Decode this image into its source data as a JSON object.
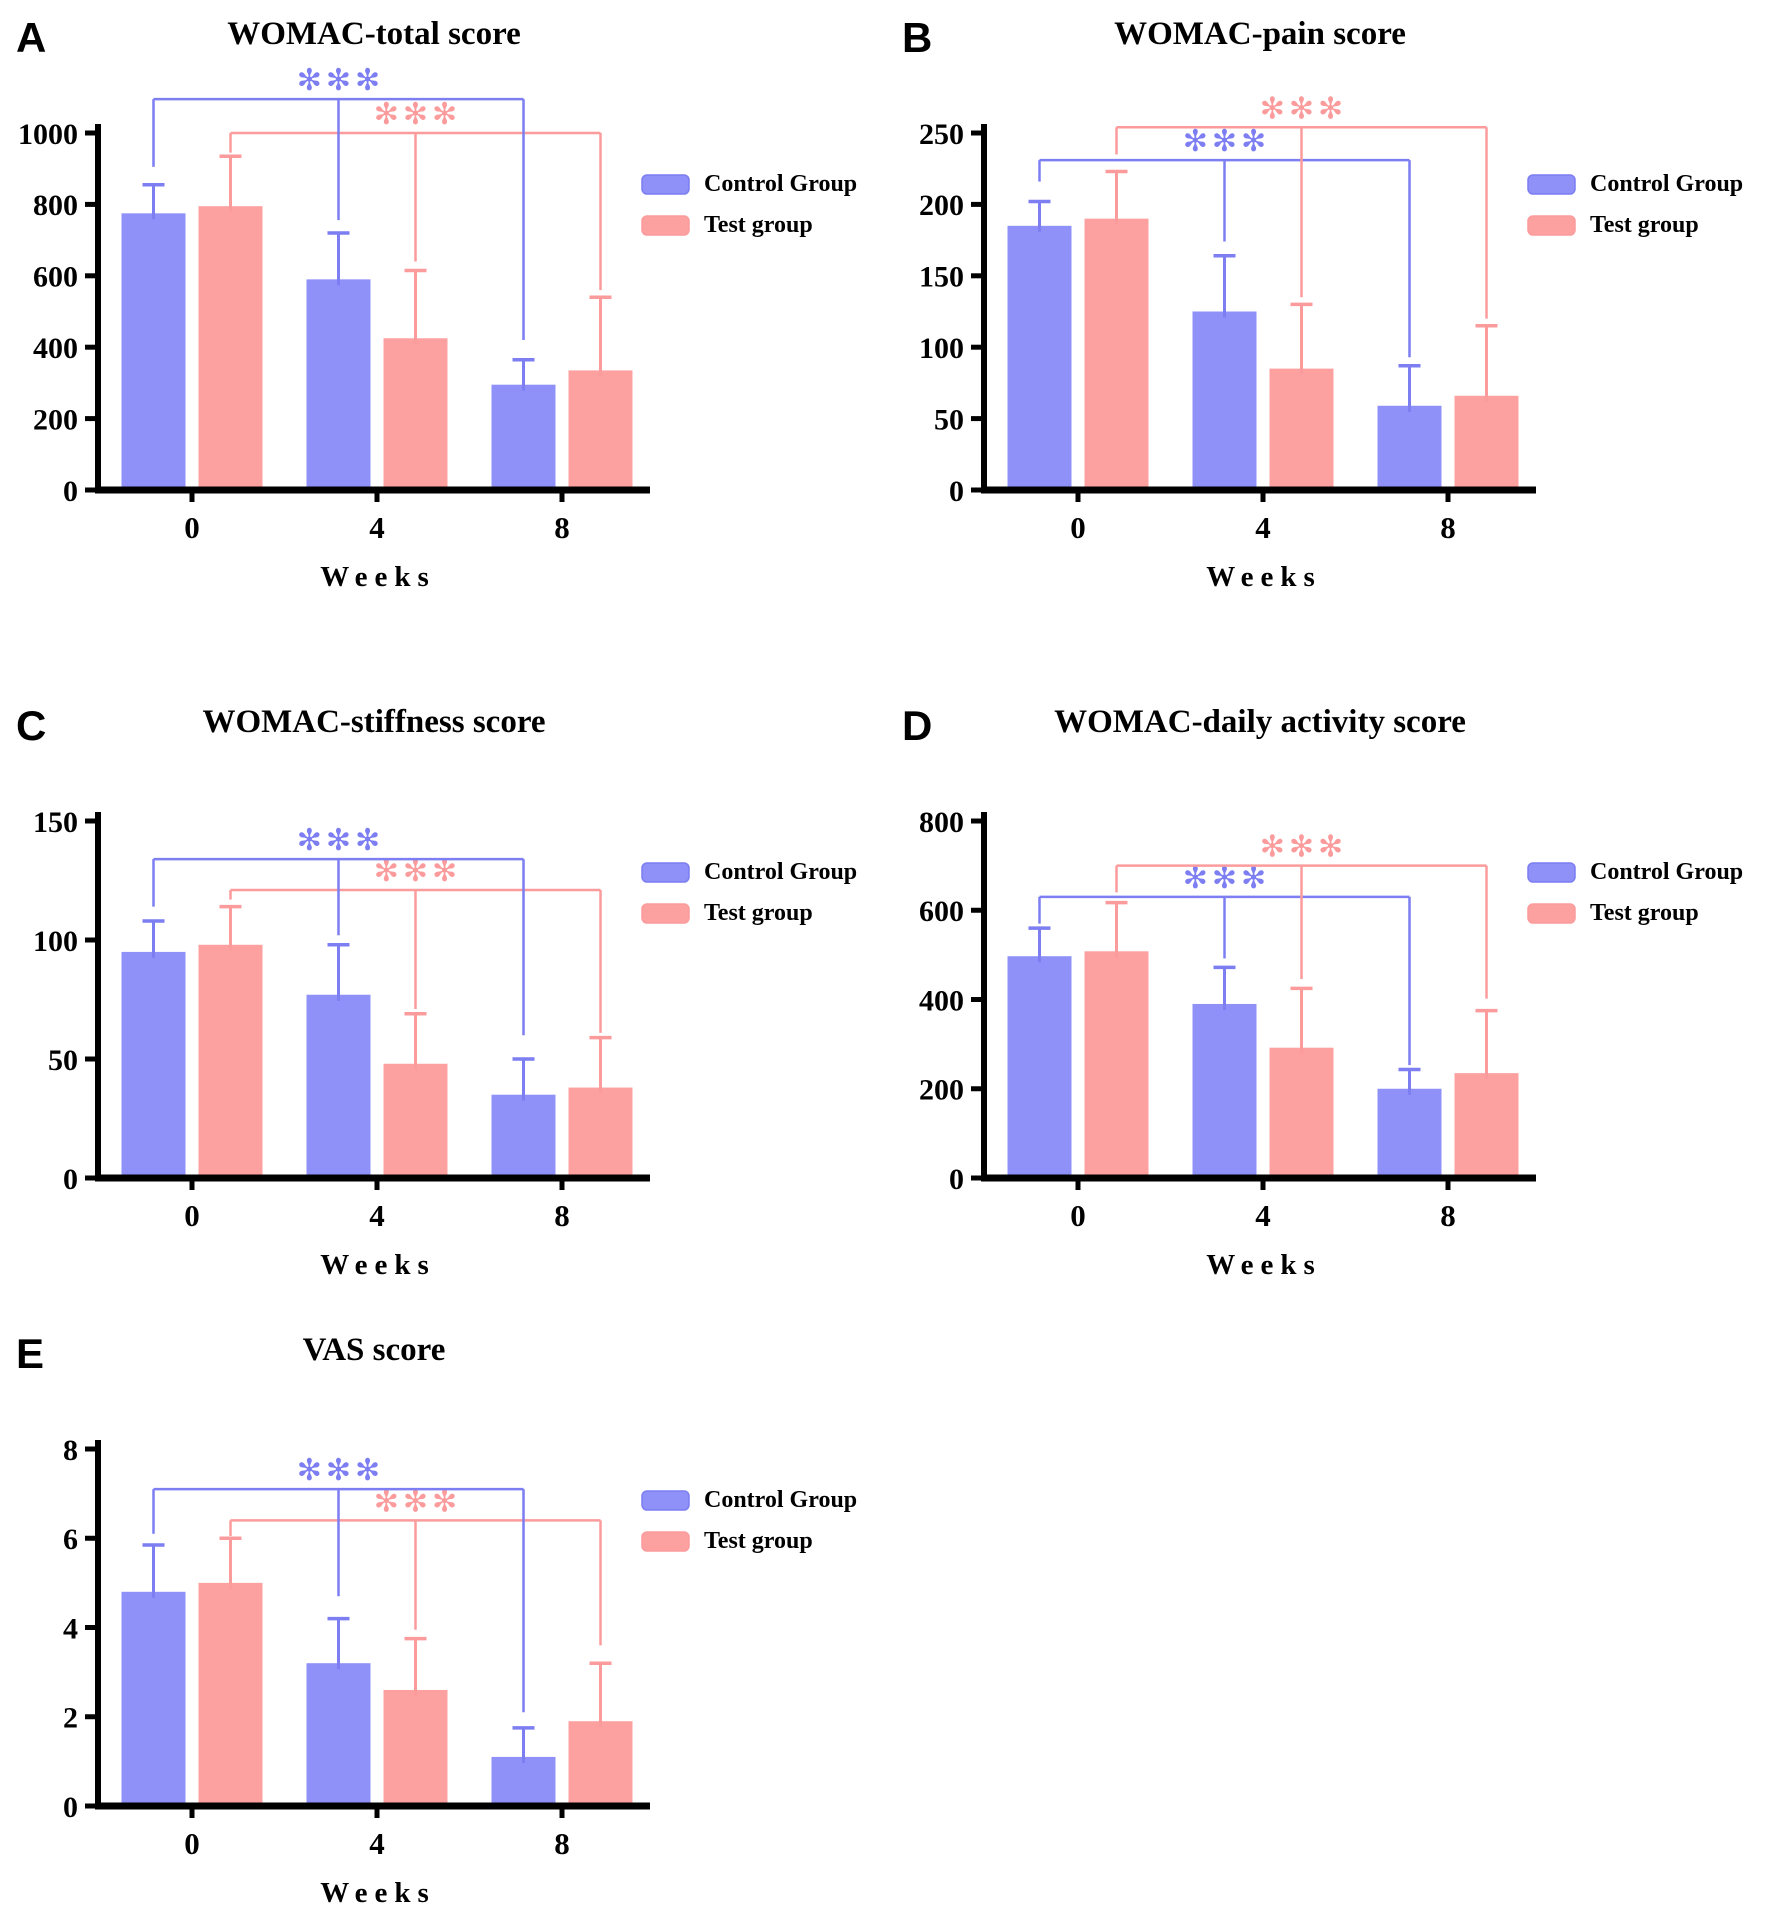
{
  "colors": {
    "control_fill": "#8F90F8",
    "control_line": "#7C7EF2",
    "test_fill": "#FCA0A0",
    "test_line": "#FB9B9C",
    "axis": "#000000",
    "background": "#FFFFFF"
  },
  "legend": {
    "labels": [
      "Control Group",
      "Test group"
    ]
  },
  "chart_data": [
    {
      "panel": "A",
      "title": "WOMAC-total score",
      "type": "bar",
      "xlabel": "Weeks",
      "categories": [
        "0",
        "4",
        "8"
      ],
      "ylim": [
        0,
        1000
      ],
      "yticks": [
        0,
        200,
        400,
        600,
        800,
        1000
      ],
      "legend": true,
      "series": [
        {
          "name": "Control Group",
          "values": [
            775,
            590,
            295
          ],
          "sd_upper": [
            80,
            130,
            70
          ]
        },
        {
          "name": "Test group",
          "values": [
            795,
            425,
            335
          ],
          "sd_upper": [
            140,
            190,
            205
          ]
        }
      ],
      "significance": [
        {
          "series": 0,
          "label": "✻✻✻",
          "level": 1095,
          "drop_ends": [
            905,
            756,
            420
          ]
        },
        {
          "series": 1,
          "label": "✻✻✻",
          "level": 1000,
          "drop_ends": [
            945,
            640,
            560
          ]
        }
      ]
    },
    {
      "panel": "B",
      "title": "WOMAC-pain score",
      "type": "bar",
      "xlabel": "Weeks",
      "categories": [
        "0",
        "4",
        "8"
      ],
      "ylim": [
        0,
        250
      ],
      "yticks": [
        0,
        50,
        100,
        150,
        200,
        250
      ],
      "legend": true,
      "series": [
        {
          "name": "Control Group",
          "values": [
            185,
            125,
            59
          ],
          "sd_upper": [
            17,
            39,
            28
          ]
        },
        {
          "name": "Test group",
          "values": [
            190,
            85,
            66
          ],
          "sd_upper": [
            33,
            45,
            49
          ]
        }
      ],
      "significance": [
        {
          "series": 1,
          "label": "✻✻✻",
          "level": 254,
          "drop_ends": [
            235,
            135,
            120
          ]
        },
        {
          "series": 0,
          "label": "✻✻✻",
          "level": 231,
          "drop_ends": [
            216,
            174,
            93
          ]
        }
      ]
    },
    {
      "panel": "C",
      "title": "WOMAC-stiffness score",
      "type": "bar",
      "xlabel": "Weeks",
      "categories": [
        "0",
        "4",
        "8"
      ],
      "ylim": [
        0,
        150
      ],
      "yticks": [
        0,
        50,
        100,
        150
      ],
      "legend": true,
      "series": [
        {
          "name": "Control Group",
          "values": [
            95,
            77,
            35
          ],
          "sd_upper": [
            13,
            21,
            15
          ]
        },
        {
          "name": "Test group",
          "values": [
            98,
            48,
            38
          ],
          "sd_upper": [
            16,
            21,
            21
          ]
        }
      ],
      "significance": [
        {
          "series": 0,
          "label": "✻✻✻",
          "level": 134,
          "drop_ends": [
            114,
            102,
            60
          ]
        },
        {
          "series": 1,
          "label": "✻✻✻",
          "level": 121,
          "drop_ends": [
            117,
            71,
            61
          ]
        }
      ]
    },
    {
      "panel": "D",
      "title": "WOMAC-daily activity score",
      "type": "bar",
      "xlabel": "Weeks",
      "categories": [
        "0",
        "4",
        "8"
      ],
      "ylim": [
        0,
        800
      ],
      "yticks": [
        0,
        200,
        400,
        600,
        800
      ],
      "legend": true,
      "series": [
        {
          "name": "Control Group",
          "values": [
            497,
            390,
            200
          ],
          "sd_upper": [
            63,
            82,
            43
          ]
        },
        {
          "name": "Test group",
          "values": [
            508,
            292,
            235
          ],
          "sd_upper": [
            109,
            133,
            140
          ]
        }
      ],
      "significance": [
        {
          "series": 1,
          "label": "✻✻✻",
          "level": 700,
          "drop_ends": [
            640,
            446,
            402
          ]
        },
        {
          "series": 0,
          "label": "✻✻✻",
          "level": 630,
          "drop_ends": [
            570,
            492,
            253
          ]
        }
      ]
    },
    {
      "panel": "E",
      "title": "VAS score",
      "type": "bar",
      "xlabel": "Weeks",
      "categories": [
        "0",
        "4",
        "8"
      ],
      "ylim": [
        0,
        8
      ],
      "yticks": [
        0,
        2,
        4,
        6,
        8
      ],
      "legend": true,
      "series": [
        {
          "name": "Control Group",
          "values": [
            4.8,
            3.2,
            1.1
          ],
          "sd_upper": [
            1.05,
            1.0,
            0.65
          ]
        },
        {
          "name": "Test group",
          "values": [
            5.0,
            2.6,
            1.9
          ],
          "sd_upper": [
            1.0,
            1.15,
            1.3
          ]
        }
      ],
      "significance": [
        {
          "series": 0,
          "label": "✻✻✻",
          "level": 7.1,
          "drop_ends": [
            6.1,
            4.7,
            2.1
          ]
        },
        {
          "series": 1,
          "label": "✻✻✻",
          "level": 6.4,
          "drop_ends": [
            6.05,
            3.95,
            3.6
          ]
        }
      ]
    }
  ]
}
